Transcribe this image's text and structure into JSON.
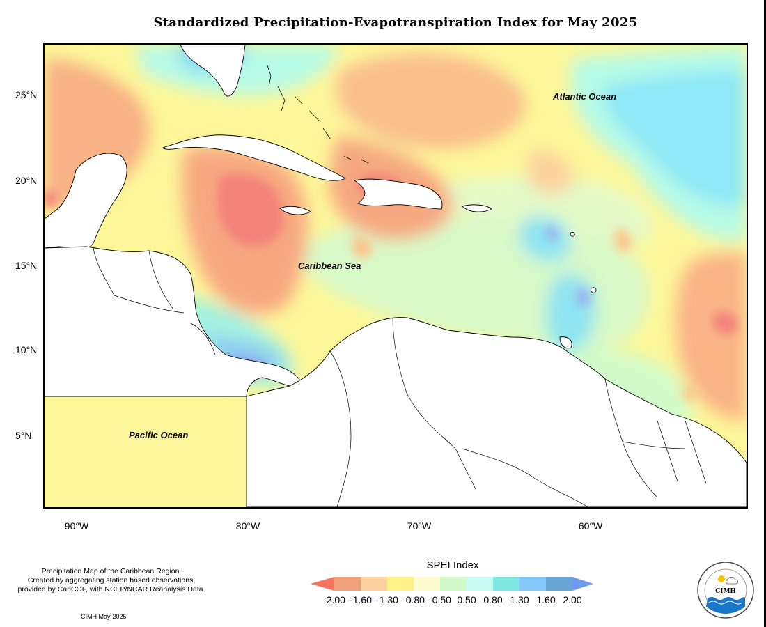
{
  "title": "Standardized Precipitation-Evapotranspiration Index for May 2025",
  "map": {
    "lat_labels": [
      "25°N",
      "20°N",
      "15°N",
      "10°N",
      "5°N"
    ],
    "lon_labels": [
      "90°W",
      "80°W",
      "70°W",
      "60°W"
    ],
    "region_labels": {
      "atlantic": "Atlantic Ocean",
      "caribbean": "Caribbean Sea",
      "pacific": "Pacific Ocean"
    }
  },
  "legend": {
    "title": "SPEI Index",
    "labels": [
      "-2.00",
      "-1.60",
      "-1.30",
      "-0.80",
      "-0.50",
      "0.50",
      "0.80",
      "1.30",
      "1.60",
      "2.00"
    ],
    "colors": [
      "#f0a07a",
      "#fdd1a0",
      "#fff088",
      "#fefbd0",
      "#d2fac8",
      "#c8fcf4",
      "#80e8e0",
      "#86c8fa",
      "#6aa6d4"
    ],
    "low_arrow_color": "#f2755c",
    "high_arrow_color": "#6e9af0"
  },
  "credits": {
    "lines": [
      "Precipitation Map of the Caribbean Region.",
      "Created by aggregating station based observations,",
      "provided by CariCOF, with NCEP/NCAR Reanalysis Data."
    ],
    "date": "CIMH May-2025"
  },
  "logo": {
    "text": "CIMH",
    "icon": "cimh-logo-icon"
  }
}
